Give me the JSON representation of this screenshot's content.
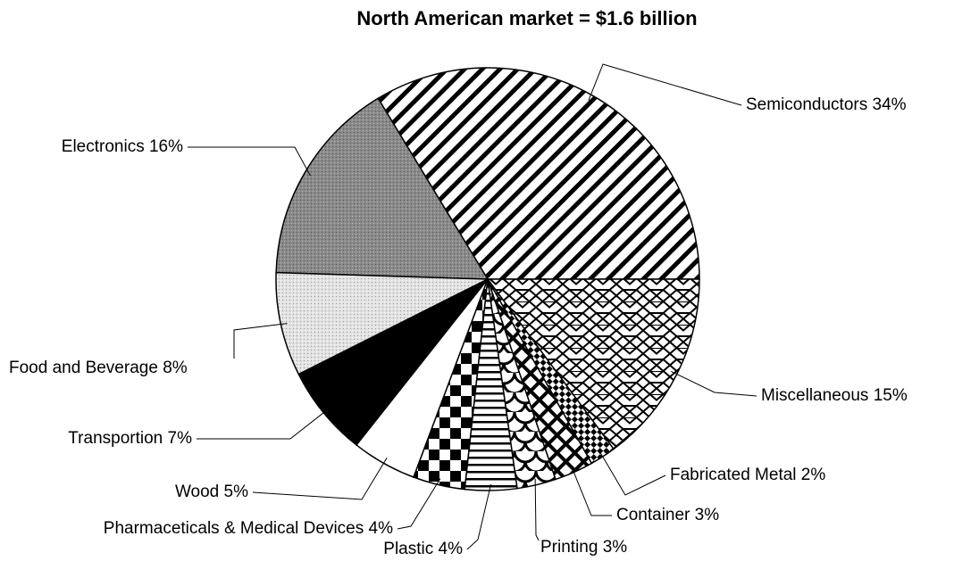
{
  "chart_data": {
    "type": "pie",
    "title": "North American market = $1.6 billion",
    "categories": [
      "Semiconductors",
      "Electronics",
      "Food and Beverage",
      "Transportion",
      "Wood",
      "Pharmaceticals & Medical Devices",
      "Plastic",
      "Printing",
      "Container",
      "Fabricated Metal",
      "Miscellaneous"
    ],
    "values": [
      34,
      16,
      8,
      7,
      5,
      4,
      4,
      3,
      3,
      2,
      15
    ],
    "value_labels": [
      "34%",
      "16%",
      "8%",
      "7%",
      "5%",
      "4%",
      "4%",
      "3%",
      "3%",
      "2%",
      "15%"
    ],
    "patterns": [
      "diagonal",
      "gray",
      "lightgray",
      "black",
      "white",
      "checker",
      "hstripes",
      "scales",
      "crosshatch",
      "diagcheck",
      "hex"
    ]
  }
}
